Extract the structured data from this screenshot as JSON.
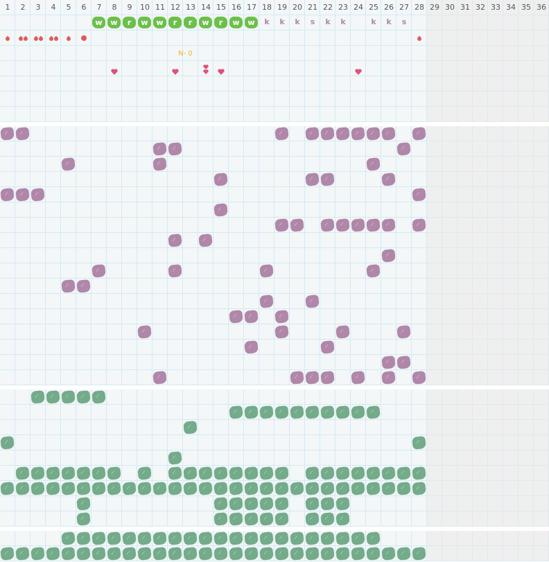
{
  "colors": {
    "purple": "#b087a9",
    "green": "#74ab8a",
    "habit_green": "#6cc04a",
    "drop_red": "#e05a5a",
    "heart_pink": "#e0507a",
    "note_orange": "#f5b325",
    "inactive_bg": "#efefef"
  },
  "days": [
    "1",
    "2",
    "3",
    "4",
    "5",
    "6",
    "7",
    "8",
    "9",
    "10",
    "11",
    "12",
    "13",
    "14",
    "15",
    "16",
    "17",
    "18",
    "19",
    "20",
    "21",
    "22",
    "23",
    "24",
    "25",
    "26",
    "27",
    "28",
    "29",
    "30",
    "31",
    "32",
    "33",
    "34",
    "35",
    "36"
  ],
  "active_days": 28,
  "habit_row": [
    {
      "day": 7,
      "label": "w",
      "style": "blob"
    },
    {
      "day": 8,
      "label": "w",
      "style": "blob"
    },
    {
      "day": 9,
      "label": "r",
      "style": "blob"
    },
    {
      "day": 10,
      "label": "w",
      "style": "blob"
    },
    {
      "day": 11,
      "label": "w",
      "style": "blob"
    },
    {
      "day": 12,
      "label": "r",
      "style": "blob"
    },
    {
      "day": 13,
      "label": "r",
      "style": "blob"
    },
    {
      "day": 14,
      "label": "w",
      "style": "blob"
    },
    {
      "day": 15,
      "label": "r",
      "style": "blob"
    },
    {
      "day": 16,
      "label": "w",
      "style": "blob"
    },
    {
      "day": 17,
      "label": "w",
      "style": "blob"
    },
    {
      "day": 18,
      "label": "k",
      "style": "text"
    },
    {
      "day": 19,
      "label": "k",
      "style": "text"
    },
    {
      "day": 20,
      "label": "k",
      "style": "text"
    },
    {
      "day": 21,
      "label": "s",
      "style": "text"
    },
    {
      "day": 22,
      "label": "k",
      "style": "text"
    },
    {
      "day": 23,
      "label": "k",
      "style": "text"
    },
    {
      "day": 25,
      "label": "k",
      "style": "text"
    },
    {
      "day": 26,
      "label": "k",
      "style": "text"
    },
    {
      "day": 27,
      "label": "s",
      "style": "text"
    }
  ],
  "flow_row": [
    {
      "day": 1,
      "mark": "drop",
      "count": 1
    },
    {
      "day": 2,
      "mark": "drop",
      "count": 2
    },
    {
      "day": 3,
      "mark": "drop",
      "count": 2
    },
    {
      "day": 4,
      "mark": "drop",
      "count": 2
    },
    {
      "day": 5,
      "mark": "drop",
      "count": 1
    },
    {
      "day": 6,
      "mark": "dot",
      "count": 1
    },
    {
      "day": 28,
      "mark": "drop",
      "count": 1
    }
  ],
  "note": {
    "day": 13,
    "text": "N- 0"
  },
  "hearts": [
    {
      "day": 8,
      "count": 1
    },
    {
      "day": 12,
      "count": 1
    },
    {
      "day": 14,
      "count": 2
    },
    {
      "day": 15,
      "count": 1
    },
    {
      "day": 24,
      "count": 1
    }
  ],
  "purple_rows": [
    [
      1,
      2,
      19,
      21,
      22,
      23,
      24,
      25,
      26,
      28
    ],
    [
      11,
      12,
      27
    ],
    [
      5,
      11,
      25
    ],
    [
      15,
      21,
      22,
      26
    ],
    [
      1,
      2,
      3,
      28
    ],
    [
      15
    ],
    [
      19,
      20,
      22,
      23,
      24,
      25,
      26,
      28
    ],
    [
      12,
      14
    ],
    [
      26
    ],
    [
      7,
      12,
      18,
      25
    ],
    [
      5,
      6
    ],
    [
      18,
      21
    ],
    [
      16,
      17,
      19
    ],
    [
      10,
      19,
      23,
      27
    ],
    [
      17,
      22
    ],
    [
      26,
      27
    ],
    [
      11,
      20,
      21,
      22,
      24,
      26,
      28
    ]
  ],
  "green_rows": [
    [
      3,
      4,
      5,
      6,
      7
    ],
    [
      16,
      17,
      18,
      19,
      20,
      21,
      22,
      23,
      24,
      25
    ],
    [
      13
    ],
    [
      1,
      28
    ],
    [
      12
    ],
    [
      2,
      3,
      4,
      5,
      6,
      7,
      8,
      10,
      12,
      13,
      14,
      15,
      16,
      17,
      18,
      19,
      21,
      22,
      23,
      24,
      25,
      26,
      27,
      28
    ],
    [
      1,
      2,
      3,
      4,
      5,
      6,
      7,
      8,
      9,
      10,
      11,
      12,
      13,
      14,
      15,
      16,
      17,
      18,
      19,
      20,
      21,
      22,
      23,
      24,
      25,
      26,
      27,
      28
    ],
    [
      6,
      15,
      16,
      17,
      18,
      19,
      21,
      22,
      23
    ],
    [
      6,
      15,
      16,
      17,
      18,
      19,
      21,
      22,
      23
    ]
  ],
  "bottom_rows": [
    [
      5,
      6,
      7,
      8,
      9,
      10,
      11,
      12,
      13,
      14,
      15,
      16,
      17,
      18,
      19,
      20,
      21,
      22,
      23,
      24,
      25
    ],
    [
      1,
      2,
      3,
      4,
      5,
      6,
      7,
      8,
      9,
      10,
      11,
      12,
      13,
      14,
      15,
      16,
      17,
      18,
      19,
      20,
      21,
      22,
      23,
      24,
      25,
      26,
      27,
      28
    ]
  ]
}
